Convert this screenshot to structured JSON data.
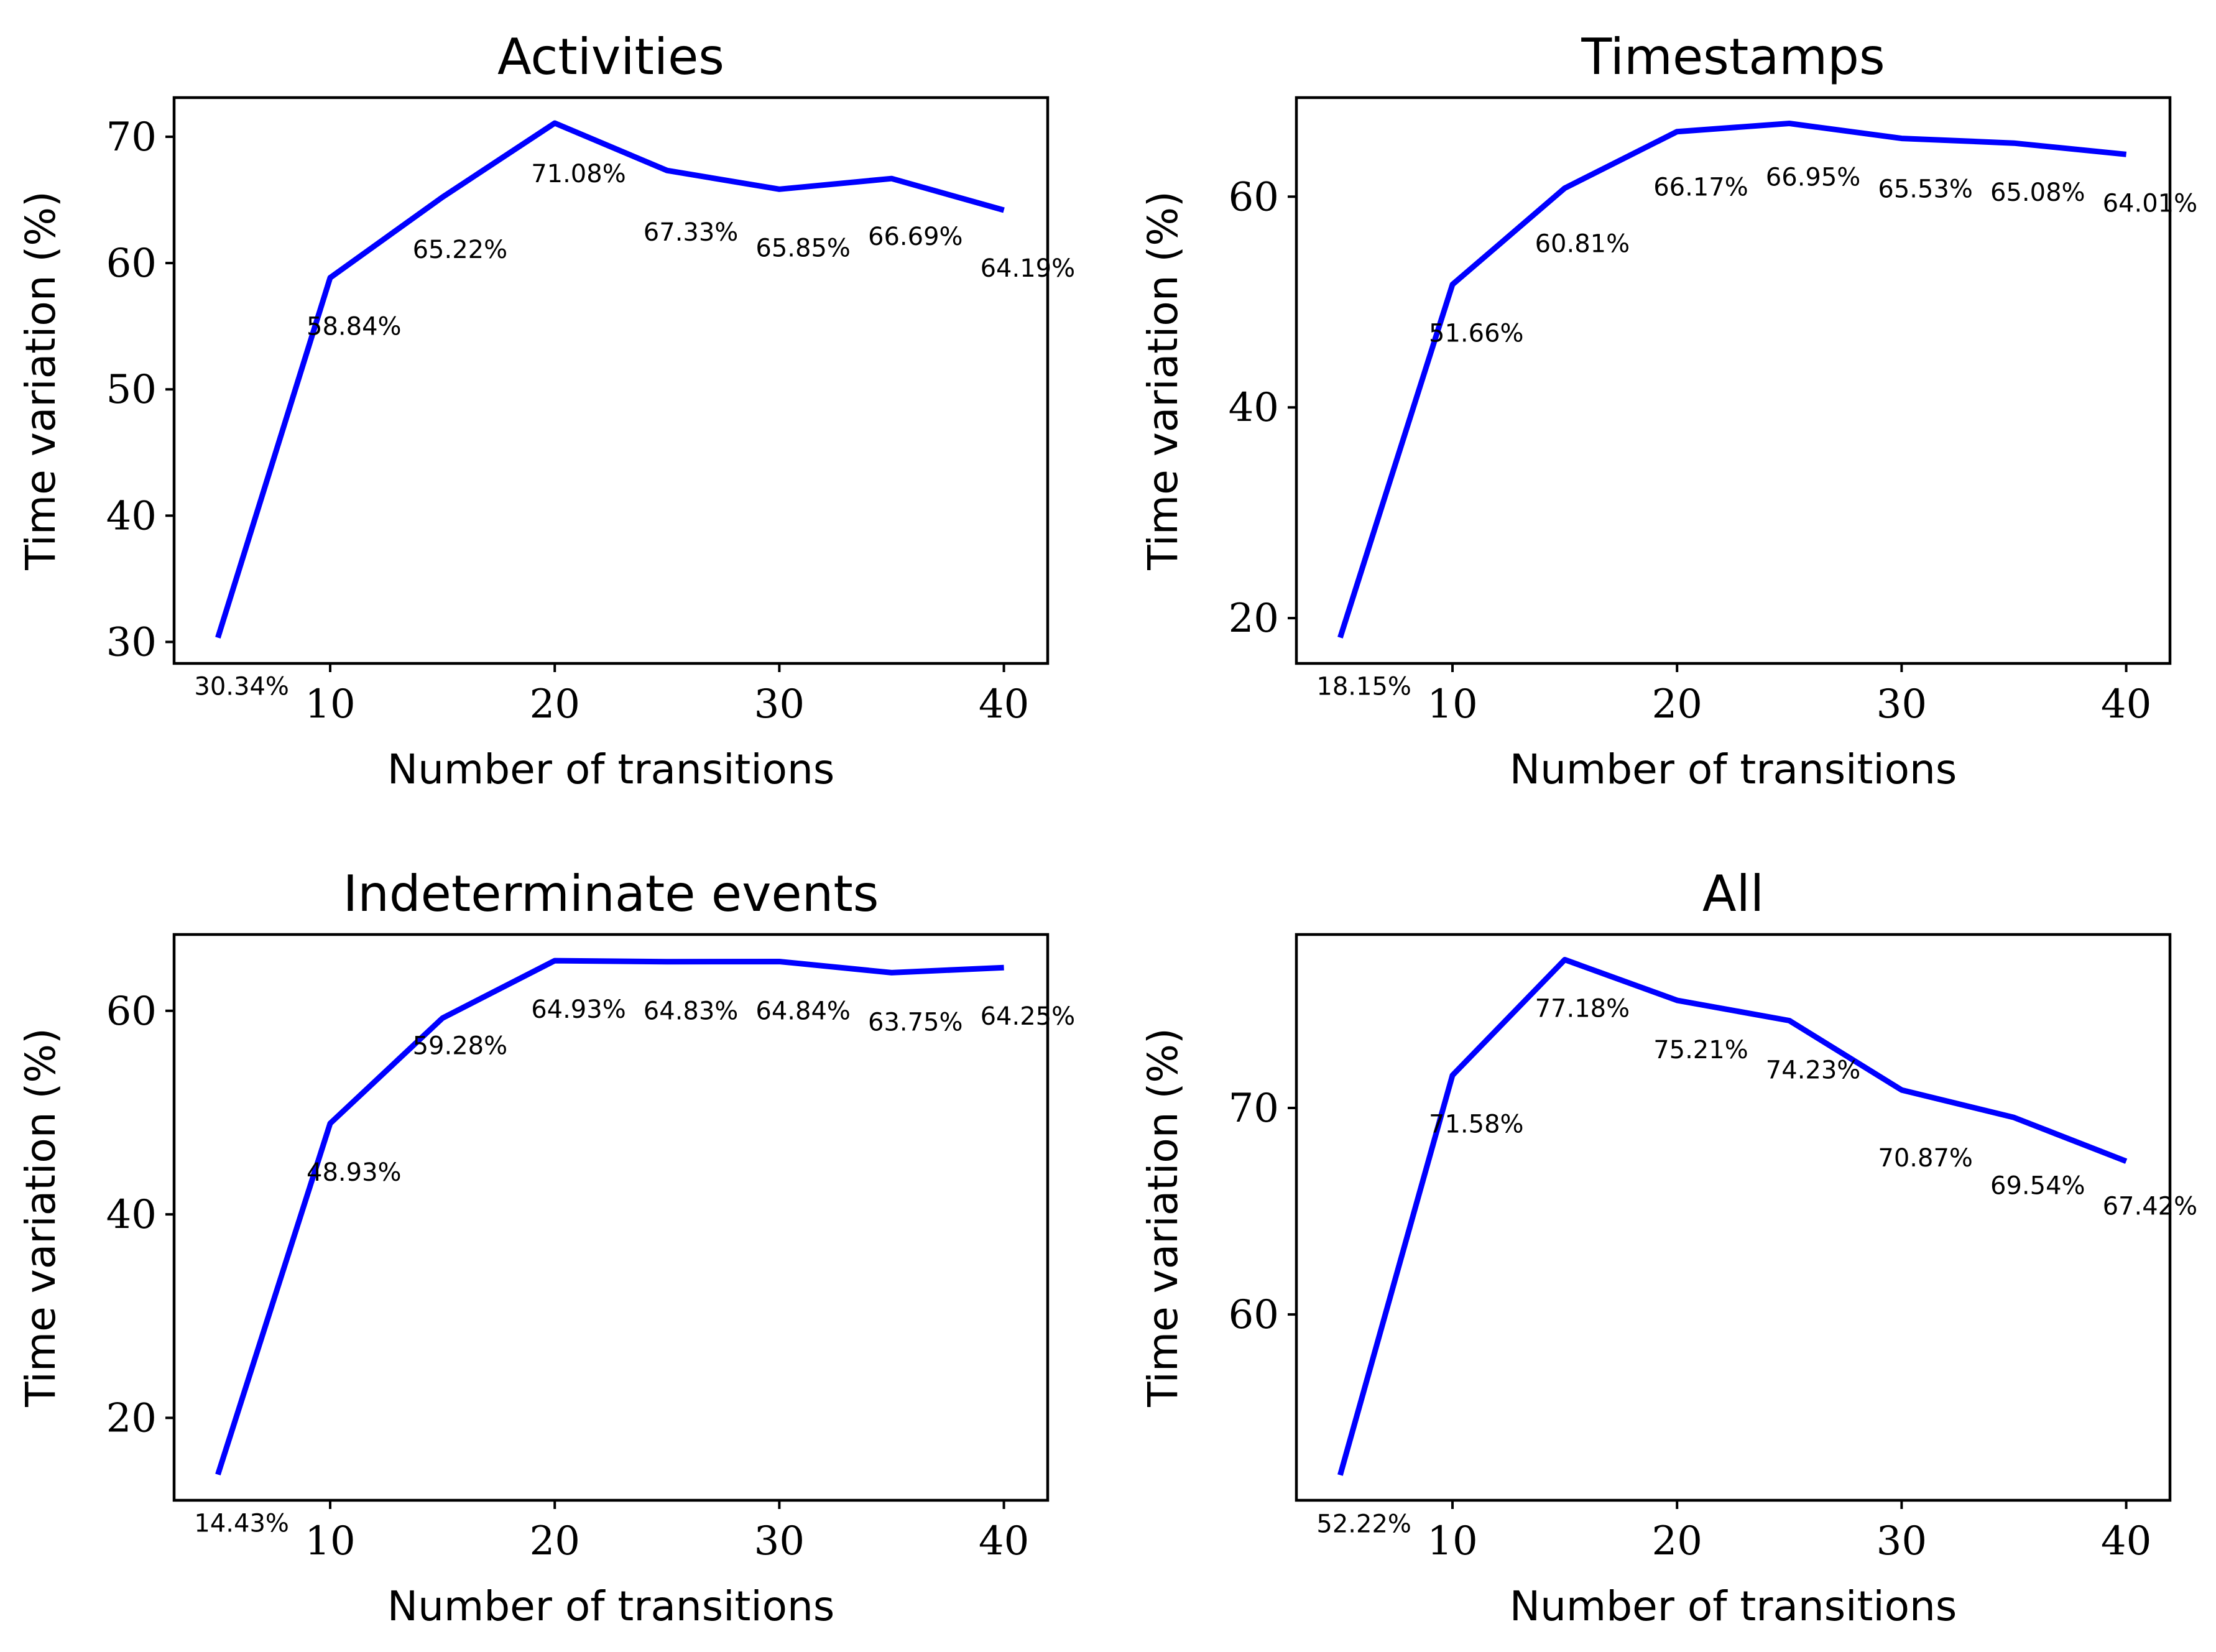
{
  "chart_data": [
    {
      "type": "line",
      "title": "Activities",
      "xlabel": "Number of transitions",
      "ylabel": "Time variation (%)",
      "x": [
        5,
        10,
        15,
        20,
        25,
        30,
        35,
        40
      ],
      "values": [
        30.34,
        58.84,
        65.22,
        71.08,
        67.33,
        65.85,
        66.69,
        64.19
      ],
      "labels": [
        "30.34%",
        "58.84%",
        "65.22%",
        "71.08%",
        "67.33%",
        "65.85%",
        "66.69%",
        "64.19%"
      ],
      "xlim": [
        3.05,
        41.95
      ],
      "ylim": [
        28.3,
        73.1
      ],
      "xticks": [
        10,
        20,
        30,
        40
      ],
      "yticks": [
        30,
        40,
        50,
        60,
        70
      ],
      "color": "#0000ff"
    },
    {
      "type": "line",
      "title": "Timestamps",
      "xlabel": "Number of transitions",
      "ylabel": "Time variation (%)",
      "x": [
        5,
        10,
        15,
        20,
        25,
        30,
        35,
        40
      ],
      "values": [
        18.15,
        51.66,
        60.81,
        66.17,
        66.95,
        65.53,
        65.08,
        64.01
      ],
      "labels": [
        "18.15%",
        "51.66%",
        "60.81%",
        "66.17%",
        "66.95%",
        "65.53%",
        "65.08%",
        "64.01%"
      ],
      "xlim": [
        3.05,
        41.95
      ],
      "ylim": [
        15.7,
        69.4
      ],
      "xticks": [
        10,
        20,
        30,
        40
      ],
      "yticks": [
        20,
        40,
        60
      ],
      "color": "#0000ff"
    },
    {
      "type": "line",
      "title": "Indeterminate events",
      "xlabel": "Number of transitions",
      "ylabel": "Time variation (%)",
      "x": [
        5,
        10,
        15,
        20,
        25,
        30,
        35,
        40
      ],
      "values": [
        14.43,
        48.93,
        59.28,
        64.93,
        64.83,
        64.84,
        63.75,
        64.25
      ],
      "labels": [
        "14.43%",
        "48.93%",
        "59.28%",
        "64.93%",
        "64.83%",
        "64.84%",
        "63.75%",
        "64.25%"
      ],
      "xlim": [
        3.05,
        41.95
      ],
      "ylim": [
        11.9,
        67.5
      ],
      "xticks": [
        10,
        20,
        30,
        40
      ],
      "yticks": [
        20,
        40,
        60
      ],
      "color": "#0000ff"
    },
    {
      "type": "line",
      "title": "All",
      "xlabel": "Number of transitions",
      "ylabel": "Time variation (%)",
      "x": [
        5,
        10,
        15,
        20,
        25,
        30,
        35,
        40
      ],
      "values": [
        52.22,
        71.58,
        77.18,
        75.21,
        74.23,
        70.87,
        69.54,
        67.42
      ],
      "labels": [
        "52.22%",
        "71.58%",
        "77.18%",
        "75.21%",
        "74.23%",
        "70.87%",
        "69.54%",
        "67.42%"
      ],
      "xlim": [
        3.05,
        41.95
      ],
      "ylim": [
        51.0,
        78.4
      ],
      "xticks": [
        10,
        20,
        30,
        40
      ],
      "yticks": [
        60,
        70
      ],
      "color": "#0000ff"
    }
  ]
}
